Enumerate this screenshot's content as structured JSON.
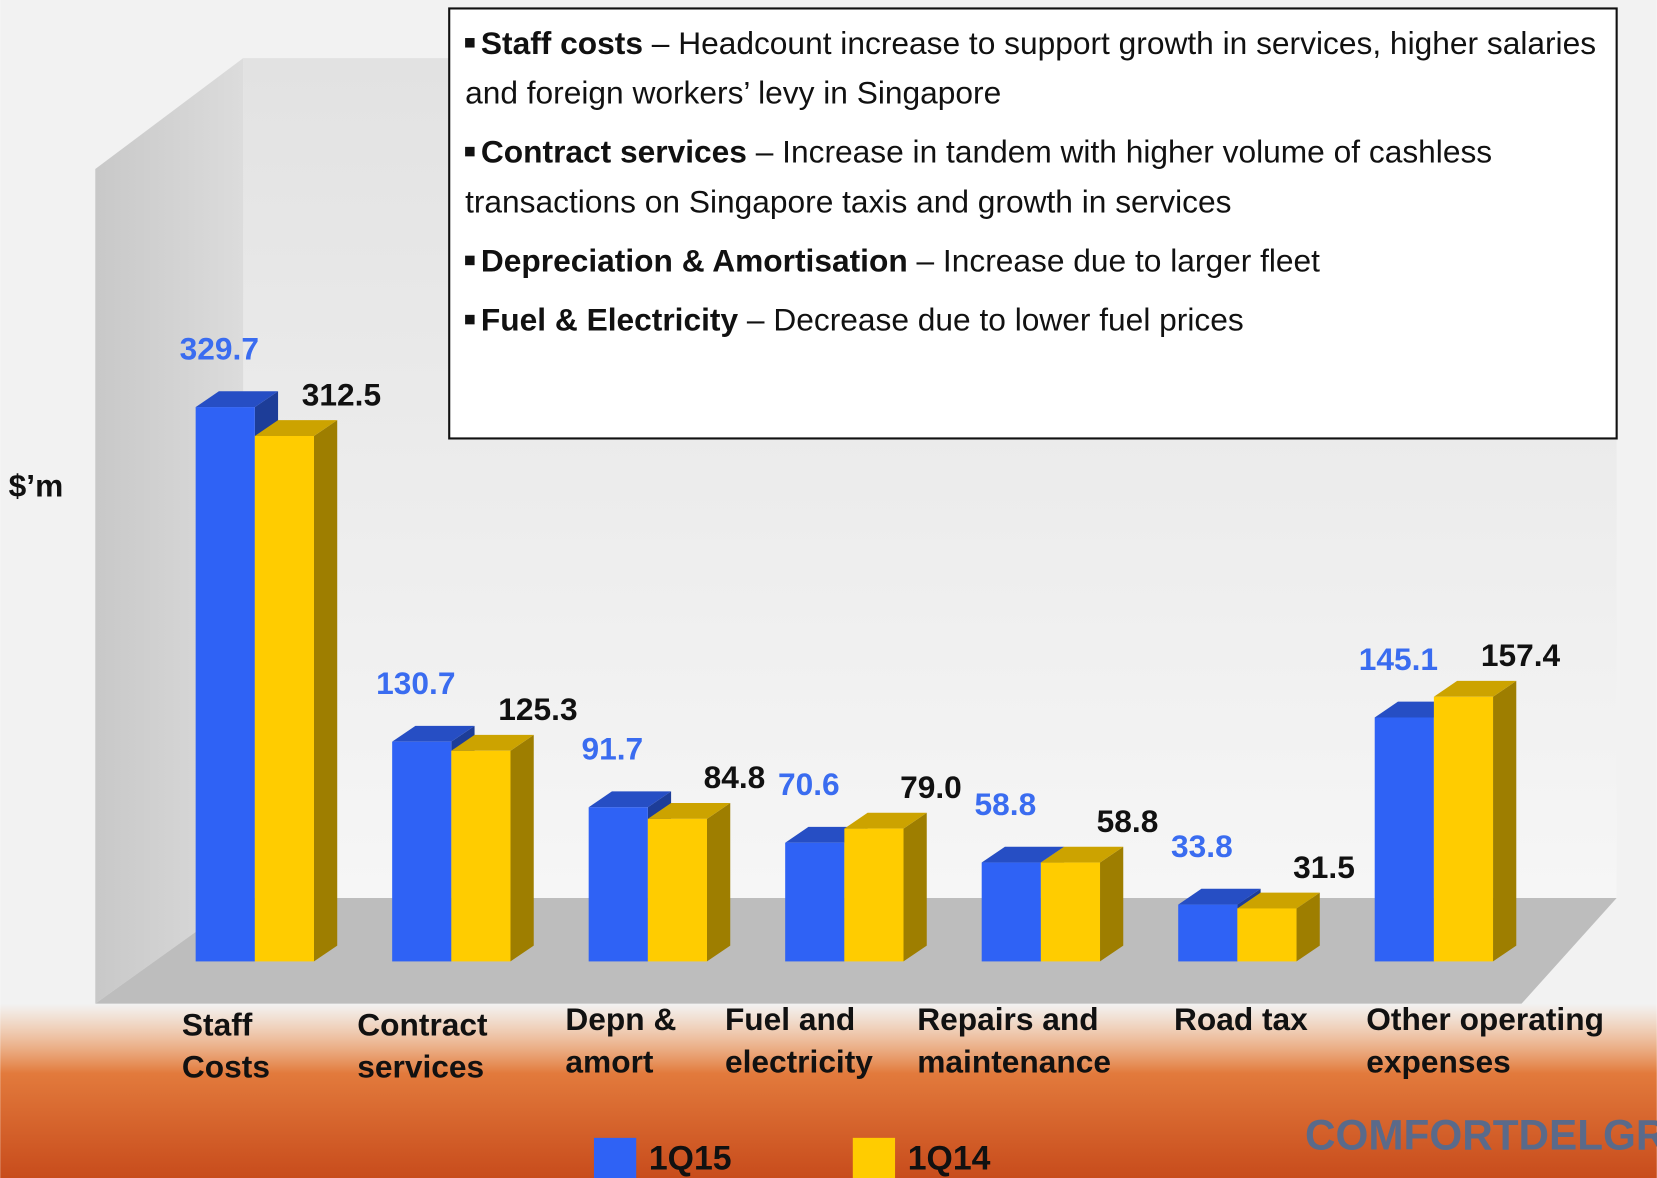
{
  "chart_data": {
    "type": "bar3d",
    "y_label": "$’m",
    "categories": [
      "Staff\nCosts",
      "Contract\nservices",
      "Depn &\namort",
      "Fuel and\nelectricity",
      "Repairs and\nmaintenance",
      "Road tax",
      "Other operating\nexpenses"
    ],
    "series": [
      {
        "name": "1Q15",
        "color": "#2f62f5",
        "label_color": "#3a6cf0",
        "values": [
          329.7,
          130.7,
          91.7,
          70.6,
          58.8,
          33.8,
          145.1
        ],
        "value_labels": [
          "329.7",
          "130.7",
          "91.7",
          "70.6",
          "58.8",
          "33.8",
          "145.1"
        ]
      },
      {
        "name": "1Q14",
        "color": "#ffcc00",
        "label_color": "#111111",
        "values": [
          312.5,
          125.3,
          84.8,
          79.0,
          58.8,
          31.5,
          157.4
        ],
        "value_labels": [
          "312.5",
          "125.3",
          "84.8",
          "79.0",
          "58.8",
          "31.5",
          "157.4"
        ]
      }
    ],
    "ylim": [
      0,
      350
    ],
    "notes": [
      {
        "bold": "Staff costs",
        "text": " – Headcount increase to support growth in services, higher salaries and foreign workers’ levy in Singapore"
      },
      {
        "bold": "Contract services",
        "text": " – Increase in tandem with higher volume of cashless transactions on Singapore taxis and growth in services"
      },
      {
        "bold": "Depreciation & Amortisation",
        "text": " – Increase due to larger fleet"
      },
      {
        "bold": "Fuel & Electricity",
        "text": " – Decrease due to lower fuel prices"
      }
    ],
    "logo": "COMFORTDELGRO"
  }
}
